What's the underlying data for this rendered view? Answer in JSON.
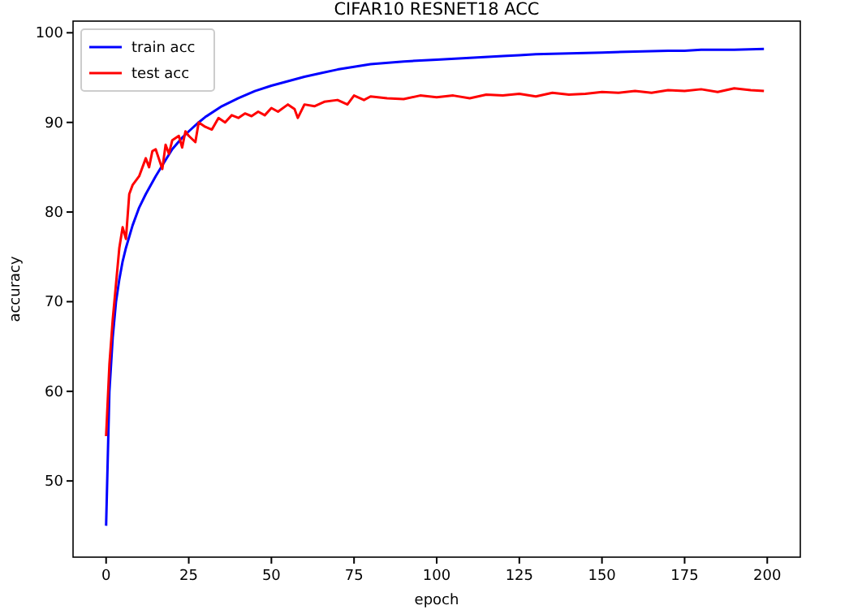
{
  "chart_data": {
    "type": "line",
    "title": "CIFAR10 RESNET18 ACC",
    "xlabel": "epoch",
    "ylabel": "accuracy",
    "xlim": [
      -10,
      210
    ],
    "ylim": [
      41.5,
      101.3
    ],
    "xticks": [
      0,
      25,
      50,
      75,
      100,
      125,
      150,
      175,
      200
    ],
    "yticks": [
      50,
      60,
      70,
      80,
      90,
      100
    ],
    "legend": "top left",
    "grid": false,
    "marker": "none",
    "line_style": "solid",
    "series": [
      {
        "name": "train acc",
        "color": "#0000ff",
        "x": [
          0,
          1,
          2,
          3,
          4,
          5,
          6,
          8,
          10,
          12,
          15,
          18,
          20,
          23,
          25,
          28,
          30,
          35,
          40,
          45,
          50,
          55,
          60,
          65,
          70,
          75,
          80,
          90,
          100,
          110,
          120,
          125,
          130,
          140,
          150,
          160,
          170,
          175,
          180,
          190,
          199
        ],
        "values": [
          45,
          60,
          66,
          70,
          72.5,
          74.5,
          76,
          78.5,
          80.5,
          82,
          84,
          85.8,
          87,
          88.3,
          89,
          90,
          90.6,
          91.8,
          92.7,
          93.5,
          94.1,
          94.6,
          95.1,
          95.5,
          95.9,
          96.2,
          96.5,
          96.8,
          97,
          97.2,
          97.4,
          97.5,
          97.6,
          97.7,
          97.8,
          97.9,
          98,
          98,
          98.1,
          98.1,
          98.2
        ]
      },
      {
        "name": "test acc",
        "color": "#ff0000",
        "x": [
          0,
          1,
          2,
          3,
          4,
          5,
          6,
          7,
          8,
          10,
          12,
          13,
          14,
          15,
          17,
          18,
          19,
          20,
          22,
          23,
          24,
          25,
          27,
          28,
          30,
          32,
          34,
          36,
          38,
          40,
          42,
          44,
          46,
          48,
          50,
          52,
          55,
          57,
          58,
          60,
          63,
          66,
          70,
          73,
          75,
          78,
          80,
          85,
          90,
          95,
          100,
          105,
          110,
          115,
          120,
          125,
          130,
          135,
          140,
          145,
          150,
          155,
          160,
          165,
          170,
          175,
          180,
          185,
          190,
          195,
          199
        ],
        "values": [
          55,
          63,
          68,
          72,
          76,
          78.3,
          77,
          82,
          83,
          84,
          86,
          85,
          86.8,
          87,
          84.8,
          87.5,
          86.5,
          88,
          88.5,
          87.2,
          89,
          88.5,
          87.8,
          90,
          89.5,
          89.2,
          90.5,
          90,
          90.8,
          90.5,
          91,
          90.7,
          91.2,
          90.8,
          91.6,
          91.2,
          92,
          91.5,
          90.5,
          92,
          91.8,
          92.3,
          92.5,
          92,
          93,
          92.5,
          92.9,
          92.7,
          92.6,
          93,
          92.8,
          93,
          92.7,
          93.1,
          93,
          93.2,
          92.9,
          93.3,
          93.1,
          93.2,
          93.4,
          93.3,
          93.5,
          93.3,
          93.6,
          93.5,
          93.7,
          93.4,
          93.8,
          93.6,
          93.5
        ]
      }
    ]
  }
}
